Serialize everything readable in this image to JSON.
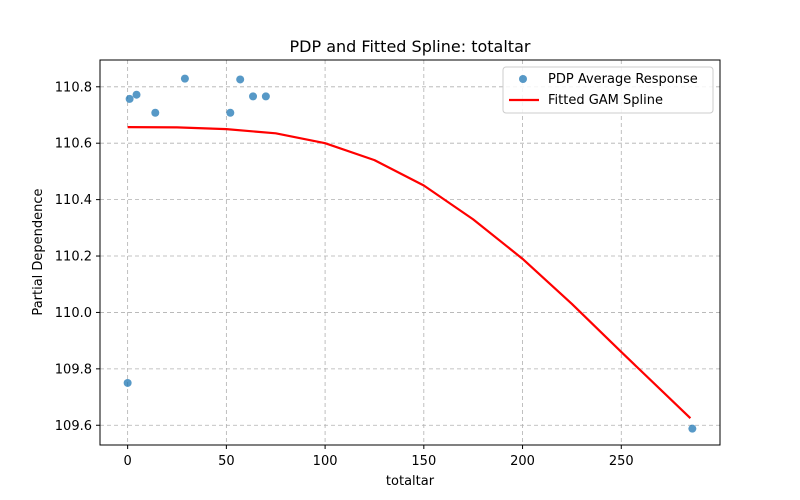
{
  "chart_data": {
    "type": "scatter",
    "title": "PDP and Fitted Spline: totaltar",
    "xlabel": "totaltar",
    "ylabel": "Partial Dependence",
    "xlim": [
      -14,
      300
    ],
    "ylim": [
      109.53,
      110.895
    ],
    "xticks": [
      0,
      50,
      100,
      150,
      200,
      250
    ],
    "yticks": [
      109.6,
      109.8,
      110.0,
      110.2,
      110.4,
      110.6,
      110.8
    ],
    "xtick_labels": [
      "0",
      "50",
      "100",
      "150",
      "200",
      "250"
    ],
    "ytick_labels": [
      "109.6",
      "109.8",
      "110.0",
      "110.2",
      "110.4",
      "110.6",
      "110.8"
    ],
    "grid": true,
    "legend_position": "top-right",
    "colors": {
      "scatter": "#1f77b4",
      "line": "#ff0000"
    },
    "series": [
      {
        "name": "PDP Average Response",
        "kind": "scatter",
        "x": [
          0,
          1,
          4.5,
          14,
          29,
          52,
          57,
          63.5,
          70,
          286
        ],
        "y": [
          109.75,
          110.757,
          110.772,
          110.708,
          110.829,
          110.708,
          110.826,
          110.766,
          110.766,
          109.588
        ]
      },
      {
        "name": "Fitted GAM Spline",
        "kind": "line",
        "x": [
          0,
          25,
          50,
          75,
          100,
          125,
          150,
          175,
          200,
          225,
          250,
          285
        ],
        "y": [
          110.657,
          110.656,
          110.65,
          110.635,
          110.6,
          110.54,
          110.45,
          110.33,
          110.19,
          110.03,
          109.86,
          109.625
        ]
      }
    ]
  }
}
